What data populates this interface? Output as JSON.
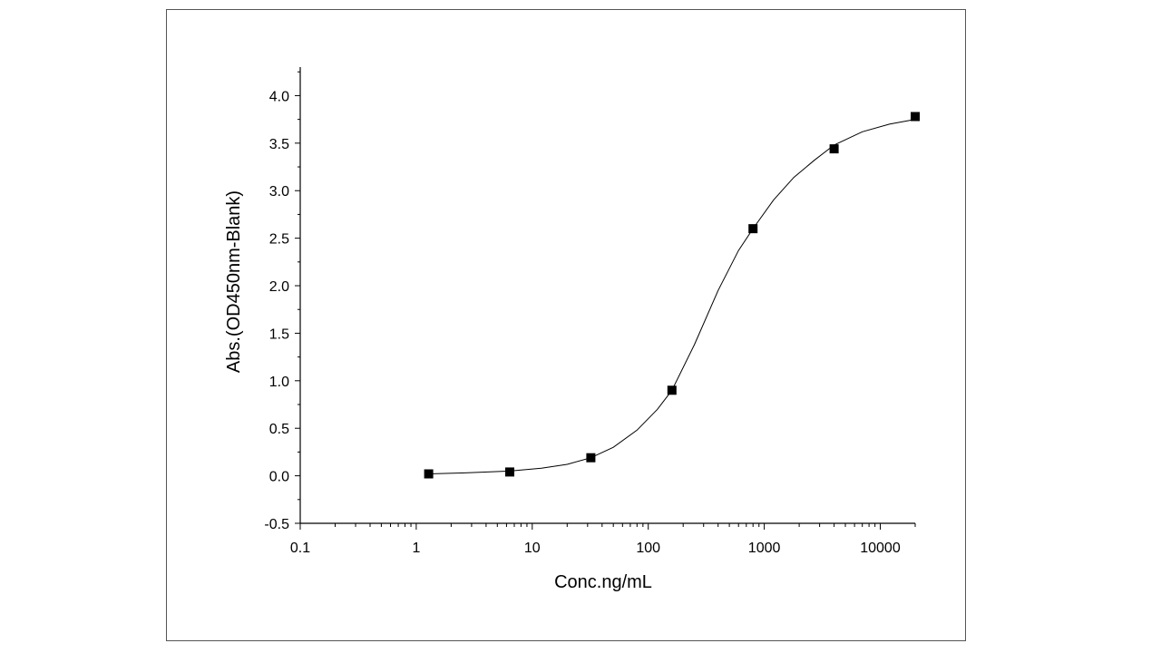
{
  "chart_data": {
    "type": "scatter",
    "x_scale": "log",
    "xlabel": "Conc.ng/mL",
    "ylabel": "Abs.(OD450nm-Blank)",
    "xlim": [
      0.1,
      20000
    ],
    "ylim": [
      -0.5,
      4.3
    ],
    "x_ticks": [
      {
        "value": 0.1,
        "label": "0.1"
      },
      {
        "value": 1,
        "label": "1"
      },
      {
        "value": 10,
        "label": "10"
      },
      {
        "value": 100,
        "label": "100"
      },
      {
        "value": 1000,
        "label": "1000"
      },
      {
        "value": 10000,
        "label": "10000"
      }
    ],
    "y_ticks": [
      {
        "value": -0.5,
        "label": "-0.5"
      },
      {
        "value": 0.0,
        "label": "0.0"
      },
      {
        "value": 0.5,
        "label": "0.5"
      },
      {
        "value": 1.0,
        "label": "1.0"
      },
      {
        "value": 1.5,
        "label": "1.5"
      },
      {
        "value": 2.0,
        "label": "2.0"
      },
      {
        "value": 2.5,
        "label": "2.5"
      },
      {
        "value": 3.0,
        "label": "3.0"
      },
      {
        "value": 3.5,
        "label": "3.5"
      },
      {
        "value": 4.0,
        "label": "4.0"
      }
    ],
    "points": [
      {
        "x": 1.28,
        "y": 0.02
      },
      {
        "x": 6.4,
        "y": 0.04
      },
      {
        "x": 32,
        "y": 0.19
      },
      {
        "x": 160,
        "y": 0.9
      },
      {
        "x": 800,
        "y": 2.6
      },
      {
        "x": 4000,
        "y": 3.44
      },
      {
        "x": 20000,
        "y": 3.78
      }
    ],
    "fit_curve": [
      {
        "x": 1.28,
        "y": 0.02
      },
      {
        "x": 2.5,
        "y": 0.03
      },
      {
        "x": 6.4,
        "y": 0.05
      },
      {
        "x": 12,
        "y": 0.08
      },
      {
        "x": 20,
        "y": 0.12
      },
      {
        "x": 32,
        "y": 0.19
      },
      {
        "x": 50,
        "y": 0.3
      },
      {
        "x": 80,
        "y": 0.48
      },
      {
        "x": 120,
        "y": 0.7
      },
      {
        "x": 160,
        "y": 0.9
      },
      {
        "x": 250,
        "y": 1.38
      },
      {
        "x": 400,
        "y": 1.95
      },
      {
        "x": 600,
        "y": 2.37
      },
      {
        "x": 800,
        "y": 2.6
      },
      {
        "x": 1200,
        "y": 2.9
      },
      {
        "x": 1800,
        "y": 3.14
      },
      {
        "x": 2700,
        "y": 3.32
      },
      {
        "x": 4000,
        "y": 3.48
      },
      {
        "x": 7000,
        "y": 3.62
      },
      {
        "x": 12000,
        "y": 3.7
      },
      {
        "x": 20000,
        "y": 3.75
      }
    ]
  }
}
